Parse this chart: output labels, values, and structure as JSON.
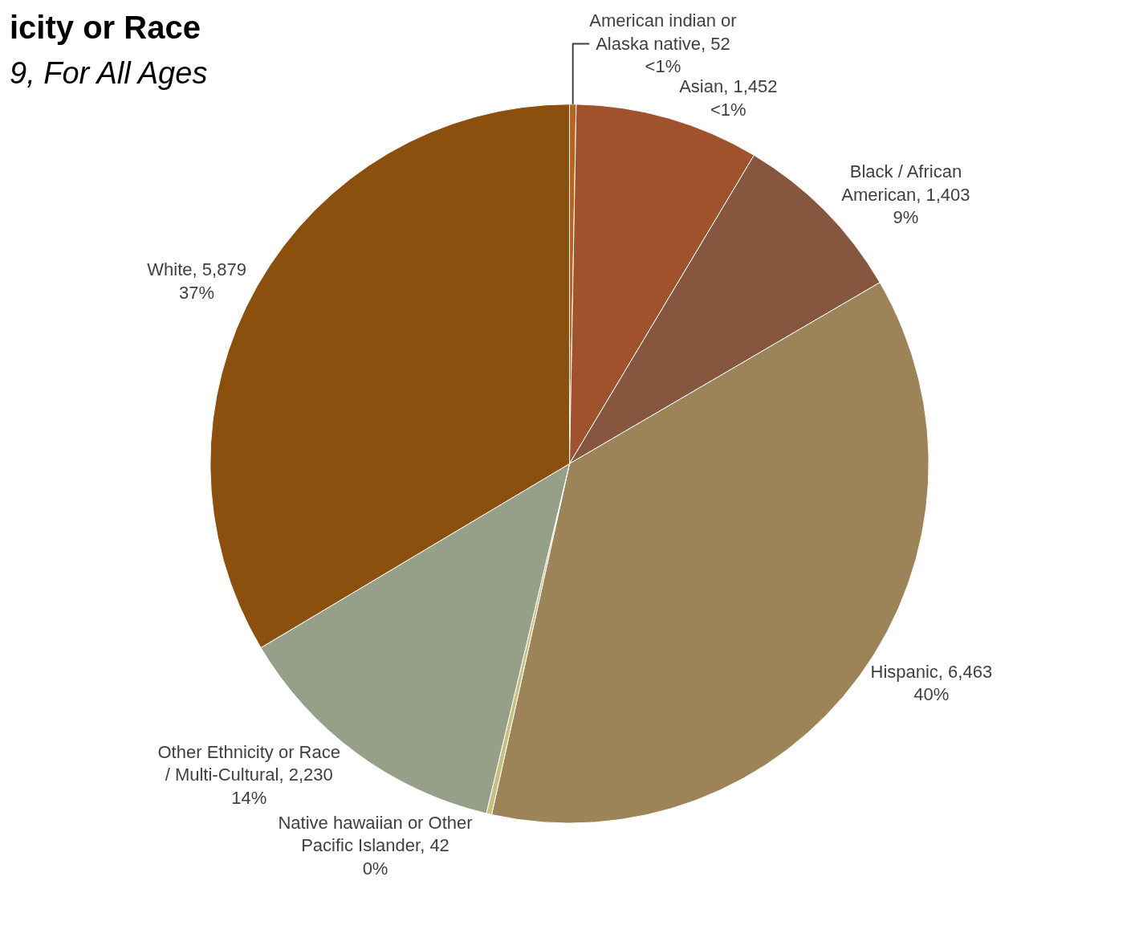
{
  "chart_data": {
    "type": "pie",
    "title": "icity or Race",
    "subtitle": "9, For All Ages",
    "categories": [
      "American indian or Alaska native",
      "Asian",
      "Black / African American",
      "Hispanic",
      "Native hawaiian or Other Pacific Islander",
      "Other Ethnicity or Race / Multi-Cultural",
      "White"
    ],
    "values": [
      52,
      1452,
      1403,
      6463,
      42,
      2230,
      5879
    ],
    "value_labels": [
      "52\n<1%",
      "1,452\n<1%",
      "1,403\n9%",
      "6,463\n40%",
      "42\n0%",
      "2,230\n14%",
      "5,879\n37%"
    ],
    "colors": [
      "#b5651d",
      "#a0522d",
      "#86563f",
      "#9c8458",
      "#c8c080",
      "#96a088",
      "#8b4f0e"
    ],
    "legend": false
  }
}
